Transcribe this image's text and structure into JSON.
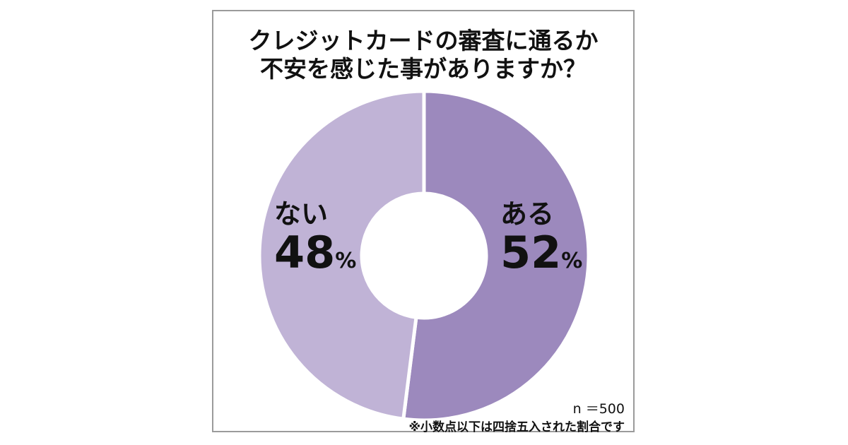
{
  "chart_data": {
    "type": "pie",
    "title_lines": [
      "クレジットカードの審査に通るか",
      "不安を感じた事がありますか？"
    ],
    "slices": [
      {
        "label": "ある",
        "value": 52,
        "color": "#9c89bd"
      },
      {
        "label": "ない",
        "value": 48,
        "color": "#c0b3d6"
      }
    ],
    "value_suffix": "%",
    "sample_size": "n ＝500",
    "footnote": "※小数点以下は四捨五入された割合です"
  }
}
